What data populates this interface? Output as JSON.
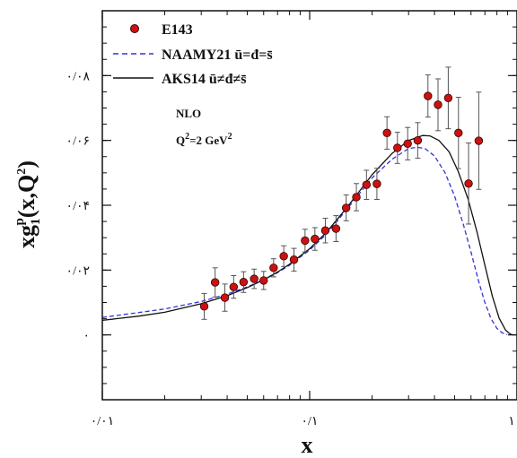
{
  "chart_data": {
    "type": "scatter",
    "title": "",
    "xlabel": "x",
    "ylabel": "xg1p(x,Q2)",
    "ylabel_parts": {
      "base": "xg",
      "sub": "1",
      "sup": "p",
      "args": "(x,Q",
      "args_sup": "2",
      "close": ")"
    },
    "x_scale": "log",
    "xlim": [
      0.01,
      1
    ],
    "ylim": [
      -0.02,
      0.1
    ],
    "x_ticks": [
      {
        "value": 0.01,
        "label": "۰/۰۱"
      },
      {
        "value": 0.1,
        "label": "۰/۱"
      },
      {
        "value": 1,
        "label": "۱"
      }
    ],
    "y_ticks": [
      {
        "value": 0,
        "label": "۰"
      },
      {
        "value": 0.02,
        "label": "۰/۰۲"
      },
      {
        "value": 0.04,
        "label": "۰/۰۴"
      },
      {
        "value": 0.06,
        "label": "۰/۰۶"
      },
      {
        "value": 0.08,
        "label": "۰/۰۸"
      }
    ],
    "legend_position": "top-left",
    "annotations": [
      {
        "text": "NLO"
      },
      {
        "text": "Q",
        "sup": "2",
        "rest": "=2 GeV",
        "sup2": "2"
      }
    ],
    "series": [
      {
        "name": "E143",
        "kind": "points",
        "color": "#cc1111",
        "points": [
          {
            "x": 0.031,
            "y": 0.0088,
            "err": 0.004
          },
          {
            "x": 0.035,
            "y": 0.0162,
            "err": 0.0045
          },
          {
            "x": 0.039,
            "y": 0.0115,
            "err": 0.0042
          },
          {
            "x": 0.043,
            "y": 0.0148,
            "err": 0.0035
          },
          {
            "x": 0.048,
            "y": 0.0163,
            "err": 0.0032
          },
          {
            "x": 0.054,
            "y": 0.0173,
            "err": 0.003
          },
          {
            "x": 0.06,
            "y": 0.0168,
            "err": 0.0028
          },
          {
            "x": 0.067,
            "y": 0.0207,
            "err": 0.0028
          },
          {
            "x": 0.075,
            "y": 0.0243,
            "err": 0.0032
          },
          {
            "x": 0.084,
            "y": 0.0232,
            "err": 0.0035
          },
          {
            "x": 0.095,
            "y": 0.0291,
            "err": 0.0035
          },
          {
            "x": 0.106,
            "y": 0.0296,
            "err": 0.0035
          },
          {
            "x": 0.119,
            "y": 0.0322,
            "err": 0.0038
          },
          {
            "x": 0.134,
            "y": 0.0328,
            "err": 0.004
          },
          {
            "x": 0.15,
            "y": 0.0392,
            "err": 0.004
          },
          {
            "x": 0.168,
            "y": 0.0425,
            "err": 0.0042
          },
          {
            "x": 0.188,
            "y": 0.0463,
            "err": 0.0045
          },
          {
            "x": 0.211,
            "y": 0.0466,
            "err": 0.0048
          },
          {
            "x": 0.236,
            "y": 0.0623,
            "err": 0.005
          },
          {
            "x": 0.265,
            "y": 0.0577,
            "err": 0.0048
          },
          {
            "x": 0.297,
            "y": 0.059,
            "err": 0.005
          },
          {
            "x": 0.332,
            "y": 0.06,
            "err": 0.0055
          },
          {
            "x": 0.372,
            "y": 0.0737,
            "err": 0.0065
          },
          {
            "x": 0.416,
            "y": 0.071,
            "err": 0.008
          },
          {
            "x": 0.466,
            "y": 0.0731,
            "err": 0.0095
          },
          {
            "x": 0.522,
            "y": 0.0623,
            "err": 0.011
          },
          {
            "x": 0.584,
            "y": 0.0467,
            "err": 0.0125
          },
          {
            "x": 0.654,
            "y": 0.0599,
            "err": 0.015
          }
        ]
      },
      {
        "name": "NAAMY21 ū=đ=s̄",
        "kind": "line",
        "style": "dashed",
        "color": "#3333dd",
        "points": [
          {
            "x": 0.01,
            "y": 0.0054
          },
          {
            "x": 0.015,
            "y": 0.0069
          },
          {
            "x": 0.02,
            "y": 0.008
          },
          {
            "x": 0.03,
            "y": 0.0103
          },
          {
            "x": 0.04,
            "y": 0.0126
          },
          {
            "x": 0.05,
            "y": 0.0148
          },
          {
            "x": 0.06,
            "y": 0.017
          },
          {
            "x": 0.07,
            "y": 0.0192
          },
          {
            "x": 0.08,
            "y": 0.0215
          },
          {
            "x": 0.1,
            "y": 0.0262
          },
          {
            "x": 0.12,
            "y": 0.031
          },
          {
            "x": 0.15,
            "y": 0.0385
          },
          {
            "x": 0.2,
            "y": 0.0484
          },
          {
            "x": 0.25,
            "y": 0.0542
          },
          {
            "x": 0.3,
            "y": 0.0575
          },
          {
            "x": 0.33,
            "y": 0.0579
          },
          {
            "x": 0.36,
            "y": 0.0575
          },
          {
            "x": 0.4,
            "y": 0.0552
          },
          {
            "x": 0.45,
            "y": 0.05
          },
          {
            "x": 0.5,
            "y": 0.0428
          },
          {
            "x": 0.55,
            "y": 0.0343
          },
          {
            "x": 0.6,
            "y": 0.0255
          },
          {
            "x": 0.65,
            "y": 0.017
          },
          {
            "x": 0.7,
            "y": 0.01
          },
          {
            "x": 0.75,
            "y": 0.005
          },
          {
            "x": 0.8,
            "y": 0.002
          },
          {
            "x": 0.85,
            "y": 0.0006
          },
          {
            "x": 0.9,
            "y": 0.0001
          }
        ]
      },
      {
        "name": "AKS14 ū≠đ≠s̄",
        "kind": "line",
        "style": "solid",
        "color": "#111111",
        "points": [
          {
            "x": 0.01,
            "y": 0.0045
          },
          {
            "x": 0.015,
            "y": 0.0058
          },
          {
            "x": 0.02,
            "y": 0.007
          },
          {
            "x": 0.03,
            "y": 0.0096
          },
          {
            "x": 0.04,
            "y": 0.0121
          },
          {
            "x": 0.05,
            "y": 0.0146
          },
          {
            "x": 0.06,
            "y": 0.017
          },
          {
            "x": 0.07,
            "y": 0.0194
          },
          {
            "x": 0.08,
            "y": 0.0218
          },
          {
            "x": 0.1,
            "y": 0.0266
          },
          {
            "x": 0.12,
            "y": 0.0315
          },
          {
            "x": 0.15,
            "y": 0.039
          },
          {
            "x": 0.2,
            "y": 0.0494
          },
          {
            "x": 0.25,
            "y": 0.056
          },
          {
            "x": 0.3,
            "y": 0.06
          },
          {
            "x": 0.35,
            "y": 0.0615
          },
          {
            "x": 0.38,
            "y": 0.0614
          },
          {
            "x": 0.42,
            "y": 0.06
          },
          {
            "x": 0.47,
            "y": 0.0565
          },
          {
            "x": 0.52,
            "y": 0.0505
          },
          {
            "x": 0.58,
            "y": 0.042
          },
          {
            "x": 0.64,
            "y": 0.032
          },
          {
            "x": 0.7,
            "y": 0.0215
          },
          {
            "x": 0.76,
            "y": 0.012
          },
          {
            "x": 0.82,
            "y": 0.0052
          },
          {
            "x": 0.88,
            "y": 0.0015
          },
          {
            "x": 0.93,
            "y": 0.0002
          },
          {
            "x": 0.96,
            "y": 0.0
          }
        ]
      }
    ]
  }
}
